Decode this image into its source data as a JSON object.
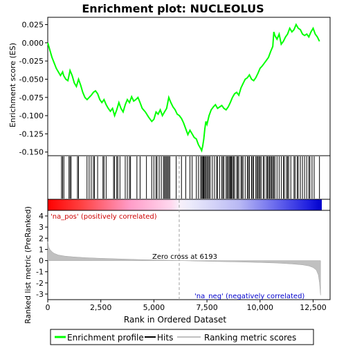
{
  "chart_data": [
    {
      "type": "line",
      "title": "Enrichment plot: NUCLEOLUS",
      "ylabel": "Enrichment score (ES)",
      "ylim": [
        -0.155,
        0.035
      ],
      "xlim": [
        0,
        13300
      ],
      "yticks": [
        "0.025",
        "0.000",
        "-0.025",
        "-0.050",
        "-0.075",
        "-0.100",
        "-0.125",
        "-0.150"
      ],
      "yticks_values": [
        0.025,
        0.0,
        -0.025,
        -0.05,
        -0.075,
        -0.1,
        -0.125,
        -0.15
      ],
      "series": [
        {
          "name": "Enrichment profile",
          "color": "#00ff00",
          "x": [
            0,
            200,
            400,
            600,
            700,
            750,
            850,
            950,
            1050,
            1150,
            1250,
            1350,
            1450,
            1550,
            1650,
            1750,
            1850,
            1950,
            2050,
            2150,
            2250,
            2350,
            2450,
            2550,
            2650,
            2750,
            2850,
            2950,
            3050,
            3150,
            3250,
            3350,
            3450,
            3550,
            3650,
            3750,
            3850,
            3950,
            4050,
            4150,
            4250,
            4350,
            4450,
            4600,
            4750,
            4900,
            5000,
            5100,
            5200,
            5300,
            5400,
            5500,
            5600,
            5700,
            5800,
            5900,
            6000,
            6100,
            6200,
            6300,
            6400,
            6500,
            6600,
            6700,
            6800,
            6900,
            7000,
            7100,
            7200,
            7250,
            7300,
            7350,
            7400,
            7450,
            7500,
            7600,
            7700,
            7800,
            7900,
            8000,
            8100,
            8200,
            8300,
            8400,
            8500,
            8600,
            8700,
            8800,
            8900,
            9000,
            9100,
            9200,
            9300,
            9400,
            9500,
            9600,
            9700,
            9800,
            9900,
            10000,
            10100,
            10200,
            10300,
            10400,
            10500,
            10600,
            10650,
            10700,
            10800,
            10900,
            11000,
            11100,
            11200,
            11300,
            11400,
            11500,
            11600,
            11700,
            11800,
            11900,
            12000,
            12100,
            12200,
            12300,
            12400,
            12500,
            12600,
            12700,
            12800
          ],
          "y": [
            0.0,
            -0.02,
            -0.035,
            -0.045,
            -0.04,
            -0.045,
            -0.05,
            -0.052,
            -0.038,
            -0.045,
            -0.055,
            -0.06,
            -0.05,
            -0.058,
            -0.068,
            -0.075,
            -0.078,
            -0.075,
            -0.072,
            -0.068,
            -0.066,
            -0.07,
            -0.078,
            -0.082,
            -0.078,
            -0.085,
            -0.09,
            -0.094,
            -0.09,
            -0.1,
            -0.092,
            -0.082,
            -0.09,
            -0.095,
            -0.085,
            -0.078,
            -0.082,
            -0.074,
            -0.08,
            -0.078,
            -0.075,
            -0.082,
            -0.09,
            -0.095,
            -0.102,
            -0.108,
            -0.105,
            -0.095,
            -0.098,
            -0.092,
            -0.1,
            -0.095,
            -0.09,
            -0.075,
            -0.082,
            -0.088,
            -0.092,
            -0.098,
            -0.1,
            -0.104,
            -0.11,
            -0.118,
            -0.126,
            -0.12,
            -0.125,
            -0.13,
            -0.132,
            -0.14,
            -0.145,
            -0.148,
            -0.142,
            -0.132,
            -0.118,
            -0.108,
            -0.112,
            -0.1,
            -0.092,
            -0.088,
            -0.085,
            -0.09,
            -0.088,
            -0.086,
            -0.09,
            -0.092,
            -0.088,
            -0.082,
            -0.075,
            -0.07,
            -0.068,
            -0.072,
            -0.062,
            -0.056,
            -0.05,
            -0.048,
            -0.044,
            -0.05,
            -0.052,
            -0.048,
            -0.042,
            -0.035,
            -0.032,
            -0.028,
            -0.024,
            -0.02,
            -0.012,
            -0.005,
            0.015,
            0.01,
            0.005,
            0.012,
            -0.002,
            0.002,
            0.008,
            0.012,
            0.02,
            0.015,
            0.018,
            0.025,
            0.02,
            0.018,
            0.012,
            0.01,
            0.012,
            0.008,
            0.015,
            0.02,
            0.012,
            0.008,
            0.002
          ]
        }
      ],
      "hits_x": [
        650,
        700,
        760,
        1000,
        1050,
        1100,
        1400,
        1450,
        1850,
        1950,
        2050,
        2150,
        2200,
        2350,
        2600,
        2650,
        2750,
        3100,
        3150,
        3250,
        3300,
        3400,
        3650,
        3750,
        3850,
        3900,
        4200,
        4350,
        4650,
        4900,
        5000,
        5100,
        5150,
        5250,
        5350,
        5450,
        5500,
        5550,
        5600,
        5650,
        5700,
        5750,
        6050,
        6300,
        6500,
        6700,
        6800,
        7000,
        7100,
        7200,
        7250,
        7300,
        7330,
        7360,
        7400,
        7450,
        7500,
        7550,
        7600,
        7650,
        7750,
        7850,
        7950,
        8000,
        8100,
        8200,
        8250,
        8300,
        8400,
        8450,
        8500,
        8550,
        8600,
        8620,
        8650,
        8700,
        8750,
        8800,
        8900,
        8950,
        9000,
        9100,
        9150,
        9200,
        9300,
        9400,
        9450,
        9500,
        9600,
        9650,
        9700,
        9800,
        9850,
        9900,
        9950,
        10000,
        10050,
        10150,
        10200,
        10300,
        10350,
        10400,
        10450,
        10500,
        10550,
        10600,
        10650,
        10700,
        10800,
        10900,
        11000,
        11100,
        11150,
        11250,
        11300,
        11350,
        11450,
        11600,
        11650,
        11750,
        11800,
        11900,
        12000,
        12100,
        12200,
        12300,
        12350,
        12450,
        12550,
        12800
      ]
    },
    {
      "type": "area",
      "ylabel": "Ranked list metric (PreRanked)",
      "xlabel": "Rank in Ordered Dataset",
      "ylim": [
        -3.5,
        4.5
      ],
      "yticks": [
        "4",
        "3",
        "2",
        "1",
        "0",
        "-1",
        "-2",
        "-3"
      ],
      "yticks_values": [
        4,
        3,
        2,
        1,
        0,
        -1,
        -2,
        -3
      ],
      "xticks": [
        "0",
        "2,500",
        "5,000",
        "7,500",
        "10,000",
        "12,500"
      ],
      "xticks_values": [
        0,
        2500,
        5000,
        7500,
        10000,
        12500
      ],
      "x": [
        0,
        50,
        100,
        200,
        300,
        500,
        800,
        1200,
        1800,
        2500,
        3500,
        4500,
        5500,
        6193,
        7000,
        8000,
        9000,
        10000,
        10800,
        11500,
        12000,
        12300,
        12500,
        12650,
        12750,
        12800,
        12850
      ],
      "y": [
        1.7,
        1.2,
        1.0,
        0.8,
        0.65,
        0.5,
        0.4,
        0.33,
        0.26,
        0.2,
        0.14,
        0.08,
        0.04,
        0.0,
        -0.04,
        -0.08,
        -0.12,
        -0.17,
        -0.22,
        -0.3,
        -0.38,
        -0.48,
        -0.62,
        -0.85,
        -1.3,
        -2.0,
        -3.1
      ],
      "zero_cross_label": "Zero cross at 6193",
      "zero_cross": 6193,
      "pos_label": "'na_pos' (positively correlated)",
      "neg_label": "'na_neg' (negatively correlated)"
    }
  ],
  "legend": {
    "items": [
      {
        "label": "Enrichment profile",
        "color": "#00ff00"
      },
      {
        "label": "Hits",
        "color": "#000000"
      },
      {
        "label": "Ranking metric scores",
        "color": "#c0c0c0"
      }
    ]
  },
  "colors": {
    "profile": "#00ff00",
    "pos_text": "#cc0000",
    "neg_text": "#0000cc",
    "metric_fill": "#c0c0c0",
    "bar_red": "#ff0000",
    "bar_blue": "#0000ff"
  }
}
